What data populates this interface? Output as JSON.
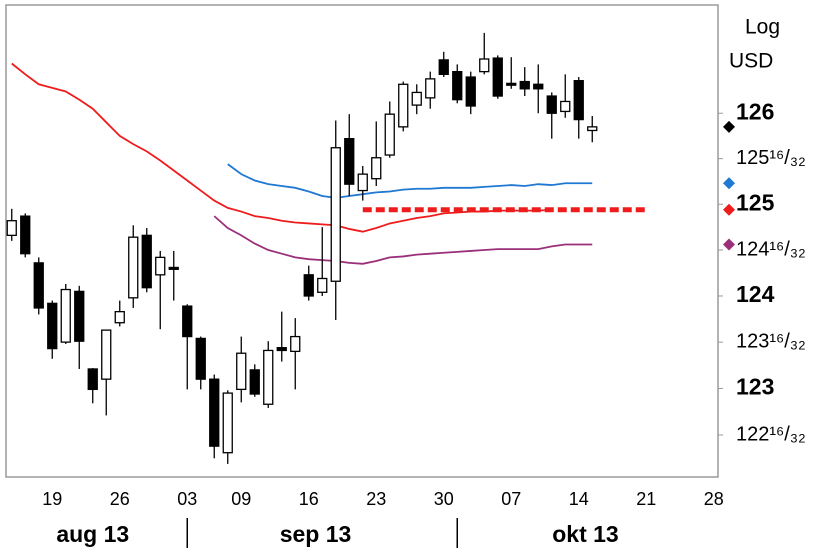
{
  "chart_data": {
    "type": "candlestick",
    "y_label": [
      "Log",
      "USD"
    ],
    "log": true,
    "ylim": [
      122.05,
      127.2
    ],
    "yticks": [
      {
        "value": 122.5,
        "label": "122¹⁶/₃₂"
      },
      123,
      {
        "value": 123.5,
        "label": "123¹⁶/₃₂"
      },
      124,
      {
        "value": 124.5,
        "label": "124¹⁶/₃₂"
      },
      125,
      {
        "value": 125.5,
        "label": "125¹⁶/₃₂"
      },
      126
    ],
    "months": [
      {
        "label": "aug 13",
        "days": [
          null,
          null,
          null,
          "19",
          null,
          null,
          null,
          null,
          "26",
          null,
          null,
          null,
          null
        ]
      },
      {
        "label": "sep 13",
        "days": [
          "03",
          null,
          null,
          null,
          "09",
          null,
          null,
          null,
          null,
          "16",
          null,
          null,
          null,
          null,
          "23",
          null,
          null,
          null,
          null,
          "30"
        ]
      },
      {
        "label": "okt 13",
        "days": [
          null,
          null,
          null,
          null,
          "07",
          null,
          null,
          null,
          null,
          "14",
          null,
          null,
          null,
          null,
          "21",
          null,
          null,
          null,
          null,
          "28"
        ]
      }
    ],
    "up_color": "#ffffff",
    "down_color": "#000000",
    "open": [
      124.66,
      124.87,
      124.36,
      123.92,
      123.5,
      124.05,
      123.21,
      123.1,
      123.71,
      123.98,
      124.66,
      124.23,
      124.31,
      123.89,
      123.54,
      123.1,
      122.31,
      122.99,
      123.2,
      122.83,
      123.44,
      123.4,
      124.23,
      124.04,
      124.16,
      125.72,
      125.15,
      125.28,
      125.54,
      125.85,
      126.09,
      126.17,
      126.59,
      126.46,
      126.4,
      126.46,
      126.61,
      126.33,
      126.35,
      126.32,
      126.19,
      126.02,
      126.36,
      125.81,
      null,
      null,
      null,
      null,
      null,
      null,
      null,
      null,
      null
    ],
    "high": [
      124.95,
      124.9,
      124.42,
      123.95,
      124.13,
      124.11,
      123.22,
      123.63,
      123.95,
      124.77,
      124.74,
      124.49,
      124.49,
      123.91,
      123.56,
      123.15,
      122.98,
      123.56,
      123.26,
      123.51,
      123.83,
      123.76,
      124.33,
      124.75,
      125.92,
      125.99,
      125.42,
      125.91,
      126.13,
      126.35,
      126.32,
      126.46,
      126.68,
      126.54,
      126.46,
      126.89,
      126.64,
      126.62,
      126.51,
      126.54,
      126.23,
      126.43,
      126.4,
      125.97,
      null,
      null,
      null,
      null,
      null,
      null,
      null,
      null,
      null
    ],
    "low": [
      124.6,
      124.42,
      123.8,
      123.32,
      123.48,
      123.21,
      122.84,
      122.71,
      123.67,
      123.87,
      124.04,
      123.64,
      123.95,
      122.99,
      122.99,
      122.25,
      122.19,
      122.85,
      122.91,
      122.79,
      123.29,
      122.99,
      123.95,
      124.0,
      123.74,
      125.09,
      125.04,
      125.2,
      125.51,
      125.8,
      125.99,
      126.05,
      126.4,
      126.11,
      125.99,
      126.43,
      126.16,
      126.27,
      126.19,
      126.0,
      125.72,
      125.95,
      125.72,
      125.68,
      null,
      null,
      null,
      null,
      null,
      null,
      null,
      null,
      null
    ],
    "close": [
      124.82,
      124.46,
      123.87,
      123.43,
      124.07,
      123.51,
      122.99,
      123.63,
      123.83,
      124.64,
      124.09,
      124.42,
      124.29,
      123.56,
      123.1,
      122.38,
      122.95,
      123.38,
      122.94,
      123.41,
      123.41,
      123.56,
      124.0,
      124.19,
      125.62,
      125.22,
      125.33,
      125.51,
      125.99,
      126.32,
      126.23,
      126.38,
      126.43,
      126.15,
      126.08,
      126.6,
      126.19,
      126.31,
      126.27,
      126.27,
      126.0,
      126.13,
      125.93,
      125.85,
      null,
      null,
      null,
      null,
      null,
      null,
      null,
      null,
      null
    ],
    "series": [
      {
        "color": "#ee1c1c",
        "style": "solid",
        "values": [
          126.55,
          126.43,
          126.32,
          126.28,
          126.24,
          126.15,
          126.05,
          125.9,
          125.75,
          125.66,
          125.58,
          125.48,
          125.37,
          125.26,
          125.15,
          125.04,
          124.96,
          124.92,
          124.87,
          124.85,
          124.82,
          124.8,
          124.79,
          124.78,
          124.77,
          124.73,
          124.7,
          124.74,
          124.79,
          124.82,
          124.85,
          124.87,
          124.9,
          124.91,
          124.92,
          124.92,
          124.93,
          124.93,
          124.93,
          124.93,
          124.94,
          null,
          null,
          null,
          null,
          null,
          null,
          null,
          null,
          null,
          null,
          null,
          null
        ]
      },
      {
        "color": "#1f78d1",
        "style": "solid",
        "values": [
          null,
          null,
          null,
          null,
          null,
          null,
          null,
          null,
          null,
          null,
          null,
          null,
          null,
          null,
          null,
          null,
          125.44,
          125.33,
          125.26,
          125.22,
          125.2,
          125.18,
          125.14,
          125.09,
          125.07,
          125.09,
          125.11,
          125.13,
          125.14,
          125.16,
          125.17,
          125.17,
          125.18,
          125.18,
          125.18,
          125.19,
          125.2,
          125.21,
          125.2,
          125.22,
          125.21,
          125.23,
          125.23,
          125.23,
          null,
          null,
          null,
          null,
          null,
          null,
          null,
          null,
          null
        ]
      },
      {
        "color": "#9b2f7a",
        "style": "solid",
        "values": [
          null,
          null,
          null,
          null,
          null,
          null,
          null,
          null,
          null,
          null,
          null,
          null,
          null,
          null,
          null,
          124.87,
          124.74,
          124.66,
          124.57,
          124.5,
          124.46,
          124.42,
          124.4,
          124.39,
          124.38,
          124.36,
          124.35,
          124.38,
          124.42,
          124.43,
          124.45,
          124.46,
          124.47,
          124.48,
          124.49,
          124.5,
          124.51,
          124.51,
          124.51,
          124.51,
          124.54,
          124.56,
          124.56,
          124.56,
          null,
          null,
          null,
          null,
          null,
          null,
          null,
          null,
          null
        ]
      },
      {
        "color": "#ee1c1c",
        "style": "dashed",
        "values": [
          null,
          null,
          null,
          null,
          null,
          null,
          null,
          null,
          null,
          null,
          null,
          null,
          null,
          null,
          null,
          null,
          null,
          null,
          null,
          null,
          null,
          null,
          null,
          null,
          null,
          null,
          124.94,
          124.94,
          124.94,
          124.94,
          124.94,
          124.94,
          124.94,
          124.94,
          124.94,
          124.94,
          124.94,
          124.94,
          124.94,
          124.94,
          124.94,
          124.94,
          124.94,
          124.94,
          124.94,
          124.94,
          124.94,
          124.94,
          null,
          null,
          null,
          null,
          null
        ]
      }
    ],
    "markers": [
      {
        "value": 125.85,
        "color": "#000000"
      },
      {
        "value": 125.23,
        "color": "#1f78d1"
      },
      {
        "value": 124.94,
        "color": "#ee1c1c"
      },
      {
        "value": 124.56,
        "color": "#9b2f7a"
      }
    ]
  }
}
